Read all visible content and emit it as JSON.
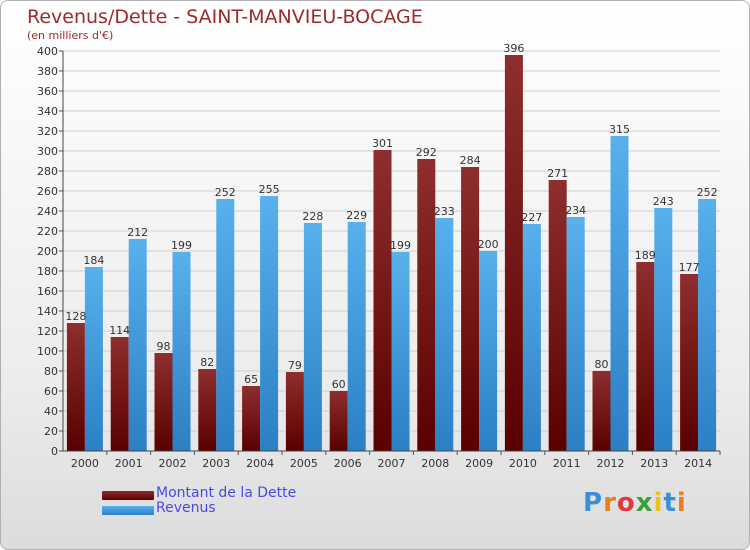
{
  "chart_data": {
    "type": "bar",
    "title": "Revenus/Dette - SAINT-MANVIEU-BOCAGE",
    "subtitle": "(en milliers d'€)",
    "categories": [
      "2000",
      "2001",
      "2002",
      "2003",
      "2004",
      "2005",
      "2006",
      "2007",
      "2008",
      "2009",
      "2010",
      "2011",
      "2012",
      "2013",
      "2014"
    ],
    "series": [
      {
        "name": "Montant de la Dette",
        "color": "#8b2a2a",
        "values": [
          128,
          114,
          98,
          82,
          65,
          79,
          60,
          301,
          292,
          284,
          396,
          271,
          80,
          189,
          177
        ]
      },
      {
        "name": "Revenus",
        "color": "#4aa3e0",
        "values": [
          184,
          212,
          199,
          252,
          255,
          228,
          229,
          199,
          233,
          200,
          227,
          234,
          315,
          243,
          252
        ]
      }
    ],
    "ylim": [
      0,
      400
    ],
    "ytick_step": 20,
    "grid": true,
    "legend_position": "bottom-left"
  },
  "logo": {
    "letters": [
      "P",
      "r",
      "o",
      "x",
      "i",
      "t",
      "i"
    ],
    "colors": [
      "#3a8fd8",
      "#e8801a",
      "#e03a3a",
      "#3aa03a",
      "#e8c31a",
      "#3a8fd8",
      "#e8801a"
    ]
  }
}
